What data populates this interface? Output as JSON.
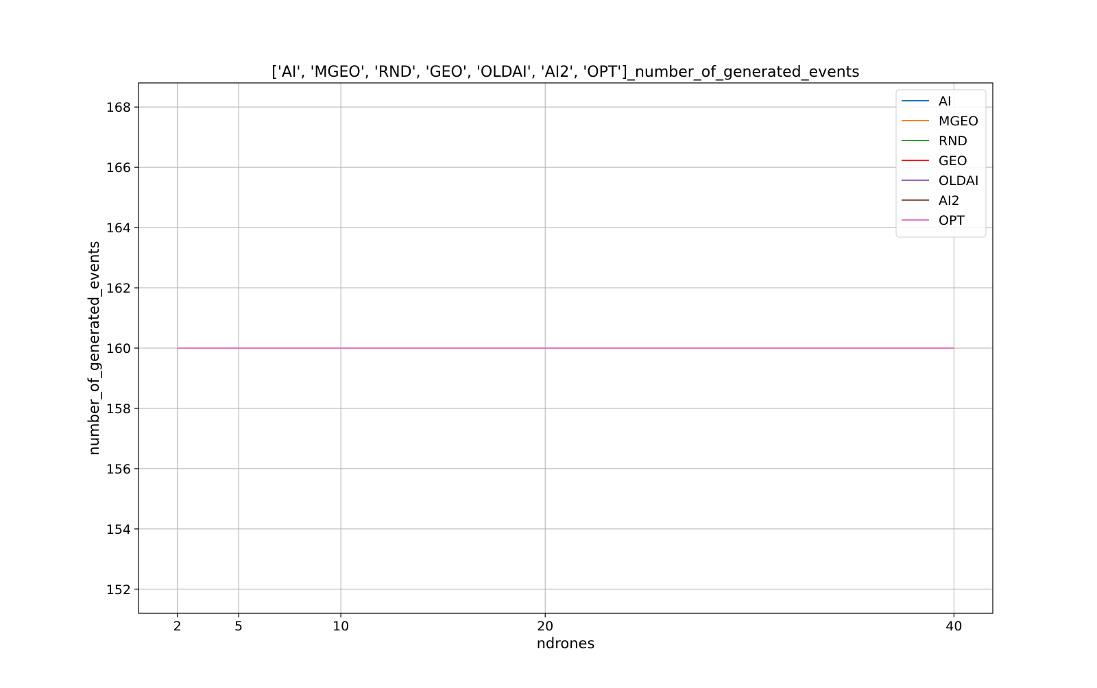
{
  "chart_data": {
    "type": "line",
    "title": "['AI', 'MGEO', 'RND', 'GEO', 'OLDAI', 'AI2', 'OPT']_number_of_generated_events",
    "xlabel": "ndrones",
    "ylabel": "number_of_generated_events",
    "x": [
      2,
      5,
      10,
      20,
      40
    ],
    "xticks": [
      2,
      5,
      10,
      20,
      40
    ],
    "yticks": [
      152,
      154,
      156,
      158,
      160,
      162,
      164,
      166,
      168
    ],
    "xlim": [
      0.1,
      41.9
    ],
    "ylim": [
      151.2,
      168.8
    ],
    "grid": true,
    "legend_position": "top-right",
    "series": [
      {
        "name": "AI",
        "color": "#1f77b4",
        "values": [
          160,
          160,
          160,
          160,
          160
        ]
      },
      {
        "name": "MGEO",
        "color": "#ff7f0e",
        "values": [
          160,
          160,
          160,
          160,
          160
        ]
      },
      {
        "name": "RND",
        "color": "#2ca02c",
        "values": [
          160,
          160,
          160,
          160,
          160
        ]
      },
      {
        "name": "GEO",
        "color": "#ff0000",
        "values": [
          160,
          160,
          160,
          160,
          160
        ]
      },
      {
        "name": "OLDAI",
        "color": "#9467bd",
        "values": [
          160,
          160,
          160,
          160,
          160
        ]
      },
      {
        "name": "AI2",
        "color": "#8c564b",
        "values": [
          160,
          160,
          160,
          160,
          160
        ]
      },
      {
        "name": "OPT",
        "color": "#e377c2",
        "values": [
          160,
          160,
          160,
          160,
          160
        ]
      }
    ]
  }
}
